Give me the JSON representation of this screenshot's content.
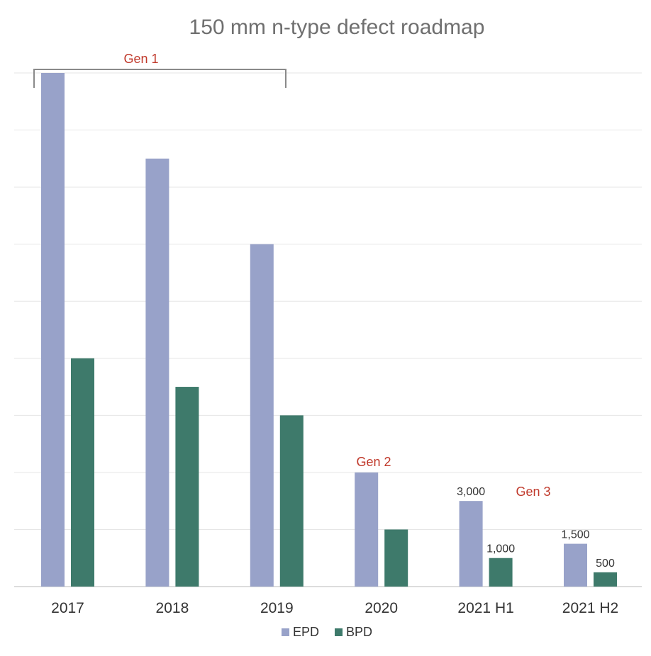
{
  "chart_data": {
    "type": "bar",
    "title": "150 mm n-type defect roadmap",
    "categories": [
      "2017",
      "2018",
      "2019",
      "2020",
      "2021 H1",
      "2021 H2"
    ],
    "series": [
      {
        "name": "EPD",
        "color": "#98a2c9",
        "values": [
          18000,
          15000,
          12000,
          4000,
          3000,
          1500
        ],
        "value_labels": [
          "",
          "",
          "",
          "",
          "3,000",
          "1,500"
        ]
      },
      {
        "name": "BPD",
        "color": "#3e7a6b",
        "values": [
          8000,
          7000,
          6000,
          2000,
          1000,
          500
        ],
        "value_labels": [
          "",
          "",
          "",
          "",
          "1,000",
          "500"
        ]
      }
    ],
    "ylim": [
      0,
      18000
    ],
    "y_gridline_step": 2000,
    "y_tick_labels_shown": false,
    "grid": true,
    "legend": "bottom-center",
    "annotations": [
      {
        "text": "Gen 1",
        "color": "#c0392b",
        "spans_categories": [
          "2017",
          "2019"
        ],
        "style": "bracket"
      },
      {
        "text": "Gen 2",
        "color": "#c0392b",
        "near_category": "2020"
      },
      {
        "text": "Gen 3",
        "color": "#c0392b",
        "near_category": "2021 H1"
      }
    ]
  }
}
